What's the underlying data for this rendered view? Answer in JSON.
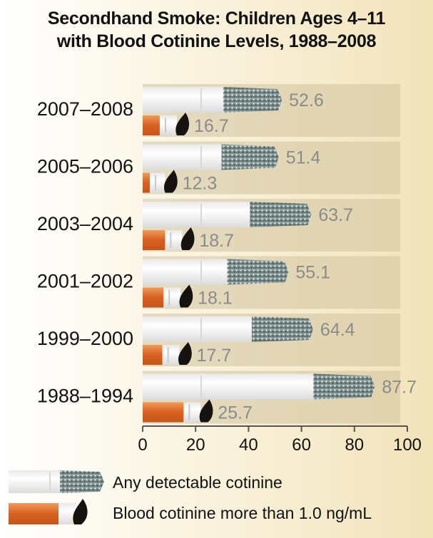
{
  "chart_data": {
    "type": "bar",
    "title_lines": [
      "Secondhand Smoke: Children Ages 4–11",
      "with Blood Cotinine Levels, 1988–2008"
    ],
    "categories": [
      "2007–2008",
      "2005–2006",
      "2003–2004",
      "2001–2002",
      "1999–2000",
      "1988–1994"
    ],
    "series": [
      {
        "name": "Any detectable cotinine",
        "values": [
          52.6,
          51.4,
          63.7,
          55.1,
          64.4,
          87.7
        ],
        "labels": [
          "52.6",
          "51.4",
          "63.7",
          "55.1",
          "64.4",
          "87.7"
        ]
      },
      {
        "name": "Blood cotinine more than 1.0 ng/mL",
        "values": [
          16.7,
          12.3,
          18.7,
          18.1,
          17.7,
          25.7
        ],
        "labels": [
          "16.7",
          "12.3",
          "18.7",
          "18.1",
          "17.7",
          "25.7"
        ]
      }
    ],
    "xlim": [
      0,
      100
    ],
    "xticks": [
      "0",
      "20",
      "40",
      "60",
      "80",
      "100"
    ],
    "orientation": "horizontal",
    "legend_position": "bottom",
    "colors": {
      "bar_area": "#d2c39f",
      "paper": "#ffffff",
      "ash": "#7f8f8f",
      "filter": "#e2702e",
      "ember": "#151210",
      "value_label": "#8b8b8b"
    }
  }
}
